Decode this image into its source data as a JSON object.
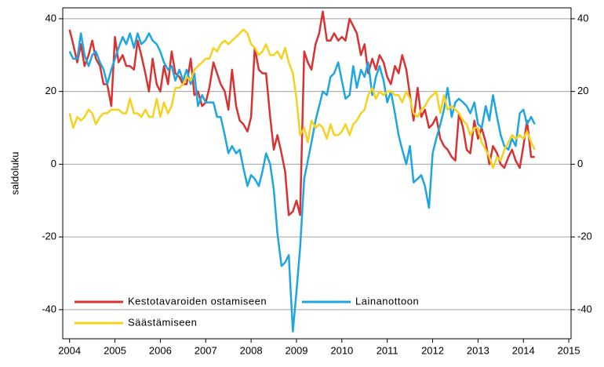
{
  "chart_data": {
    "type": "line",
    "ylabel": "saldoluku",
    "x": [
      2004,
      2004.08,
      2004.17,
      2004.25,
      2004.33,
      2004.42,
      2004.5,
      2004.58,
      2004.67,
      2004.75,
      2004.83,
      2004.92,
      2005,
      2005.08,
      2005.17,
      2005.25,
      2005.33,
      2005.42,
      2005.5,
      2005.58,
      2005.67,
      2005.75,
      2005.83,
      2005.92,
      2006,
      2006.08,
      2006.17,
      2006.25,
      2006.33,
      2006.42,
      2006.5,
      2006.58,
      2006.67,
      2006.75,
      2006.83,
      2006.92,
      2007,
      2007.08,
      2007.17,
      2007.25,
      2007.33,
      2007.42,
      2007.5,
      2007.58,
      2007.67,
      2007.75,
      2007.83,
      2007.92,
      2008,
      2008.08,
      2008.17,
      2008.25,
      2008.33,
      2008.42,
      2008.5,
      2008.58,
      2008.67,
      2008.75,
      2008.83,
      2008.92,
      2009,
      2009.08,
      2009.17,
      2009.25,
      2009.33,
      2009.42,
      2009.5,
      2009.58,
      2009.67,
      2009.75,
      2009.83,
      2009.92,
      2010,
      2010.08,
      2010.17,
      2010.25,
      2010.33,
      2010.42,
      2010.5,
      2010.58,
      2010.67,
      2010.75,
      2010.83,
      2010.92,
      2011,
      2011.08,
      2011.17,
      2011.25,
      2011.33,
      2011.42,
      2011.5,
      2011.58,
      2011.67,
      2011.75,
      2011.83,
      2011.92,
      2012,
      2012.08,
      2012.17,
      2012.25,
      2012.33,
      2012.42,
      2012.5,
      2012.58,
      2012.67,
      2012.75,
      2012.83,
      2012.92,
      2013,
      2013.08,
      2013.17,
      2013.25,
      2013.33,
      2013.42,
      2013.5,
      2013.58,
      2013.67,
      2013.75,
      2013.83,
      2013.92,
      2014,
      2014.08,
      2014.17,
      2014.25
    ],
    "series": [
      {
        "name": "Kestotavaroiden ostamiseen",
        "color": "#d93232",
        "values": [
          37,
          33,
          28,
          33,
          27,
          30,
          34,
          29,
          27,
          22,
          22,
          16,
          35,
          28,
          30,
          27,
          27,
          26,
          34,
          30,
          25,
          20,
          29,
          22,
          20,
          27,
          22,
          31,
          25,
          24,
          22,
          22,
          29,
          19,
          20,
          16,
          17,
          21,
          28,
          25,
          22,
          20,
          15,
          26,
          16,
          12,
          11,
          9,
          13,
          32,
          26,
          25,
          25,
          13,
          4,
          8,
          3,
          -2,
          -14,
          -13,
          -10,
          -14,
          31,
          28,
          26,
          33,
          36,
          42,
          34,
          34,
          36,
          34,
          35,
          34,
          40,
          38,
          36,
          30,
          33,
          25,
          29,
          26,
          30,
          28,
          24,
          22,
          27,
          25,
          30,
          26,
          19,
          12,
          21,
          13,
          15,
          10,
          11,
          13,
          7,
          5,
          4,
          2,
          1,
          14,
          10,
          4,
          3,
          12,
          7,
          10,
          6,
          0,
          5,
          3,
          0,
          -1,
          2,
          4,
          1,
          -1,
          5,
          12,
          2,
          2
        ]
      },
      {
        "name": "Lainanottoon",
        "color": "#1ea6e0",
        "values": [
          31,
          29,
          29,
          36,
          30,
          27,
          30,
          31,
          28,
          26,
          22,
          26,
          29,
          32,
          35,
          33,
          36,
          32,
          36,
          33,
          34,
          36,
          34,
          33,
          31,
          28,
          26,
          27,
          23,
          26,
          23,
          26,
          22,
          25,
          16,
          19,
          17,
          17,
          17,
          13,
          13,
          8,
          3,
          5,
          3,
          4,
          -1,
          -6,
          -3,
          -4,
          -6,
          -2,
          3,
          0,
          -7,
          -19,
          -28,
          -27,
          -25,
          -46,
          -35,
          -23,
          -4,
          1,
          6,
          12,
          16,
          20,
          19,
          24,
          25,
          28,
          23,
          18,
          19,
          27,
          21,
          26,
          24,
          28,
          19,
          24,
          27,
          23,
          17,
          20,
          14,
          8,
          4,
          0,
          5,
          -5,
          -4,
          -3,
          -6,
          -12,
          3,
          7,
          11,
          15,
          21,
          13,
          17,
          18,
          17,
          16,
          14,
          17,
          11,
          10,
          16,
          12,
          19,
          13,
          8,
          5,
          4,
          7,
          5,
          14,
          15,
          11,
          13,
          11
        ]
      },
      {
        "name": "Säästämiseen",
        "color": "#f5d21e",
        "values": [
          14,
          10,
          13,
          12,
          13,
          15,
          14,
          11,
          13,
          14,
          14,
          15,
          15,
          15,
          14,
          14,
          18,
          14,
          14,
          13,
          15,
          13,
          13,
          18,
          13,
          17,
          14,
          16,
          21,
          21,
          22,
          24,
          23,
          26,
          27,
          28,
          29,
          29,
          32,
          31,
          33,
          34,
          33,
          34,
          35,
          36,
          37,
          36,
          33,
          32,
          30,
          31,
          33,
          30,
          30,
          31,
          29,
          32,
          28,
          25,
          18,
          8,
          10,
          6,
          12,
          10,
          11,
          10,
          7,
          11,
          8,
          8,
          9,
          11,
          8,
          11,
          12,
          14,
          15,
          19,
          21,
          18,
          20,
          19,
          20,
          20,
          19,
          19,
          17,
          20,
          18,
          14,
          13,
          15,
          16,
          18,
          19,
          20,
          14,
          19,
          15,
          16,
          15,
          14,
          12,
          11,
          8,
          10,
          10,
          6,
          4,
          2,
          -1,
          2,
          1,
          4,
          6,
          8,
          7,
          8,
          7,
          9,
          6,
          4
        ]
      }
    ],
    "xlim": [
      2003.85,
      2015.05
    ],
    "xticks": [
      2004,
      2005,
      2006,
      2007,
      2008,
      2009,
      2010,
      2011,
      2012,
      2013,
      2014,
      2015
    ],
    "ylim": [
      -48,
      43
    ],
    "yticks": [
      40,
      20,
      0,
      -20,
      -40
    ],
    "y2lim": [
      -48,
      43
    ],
    "y2ticks": [
      40,
      20,
      0,
      -20,
      -40
    ],
    "grid": true,
    "legend": "bottom-left"
  }
}
